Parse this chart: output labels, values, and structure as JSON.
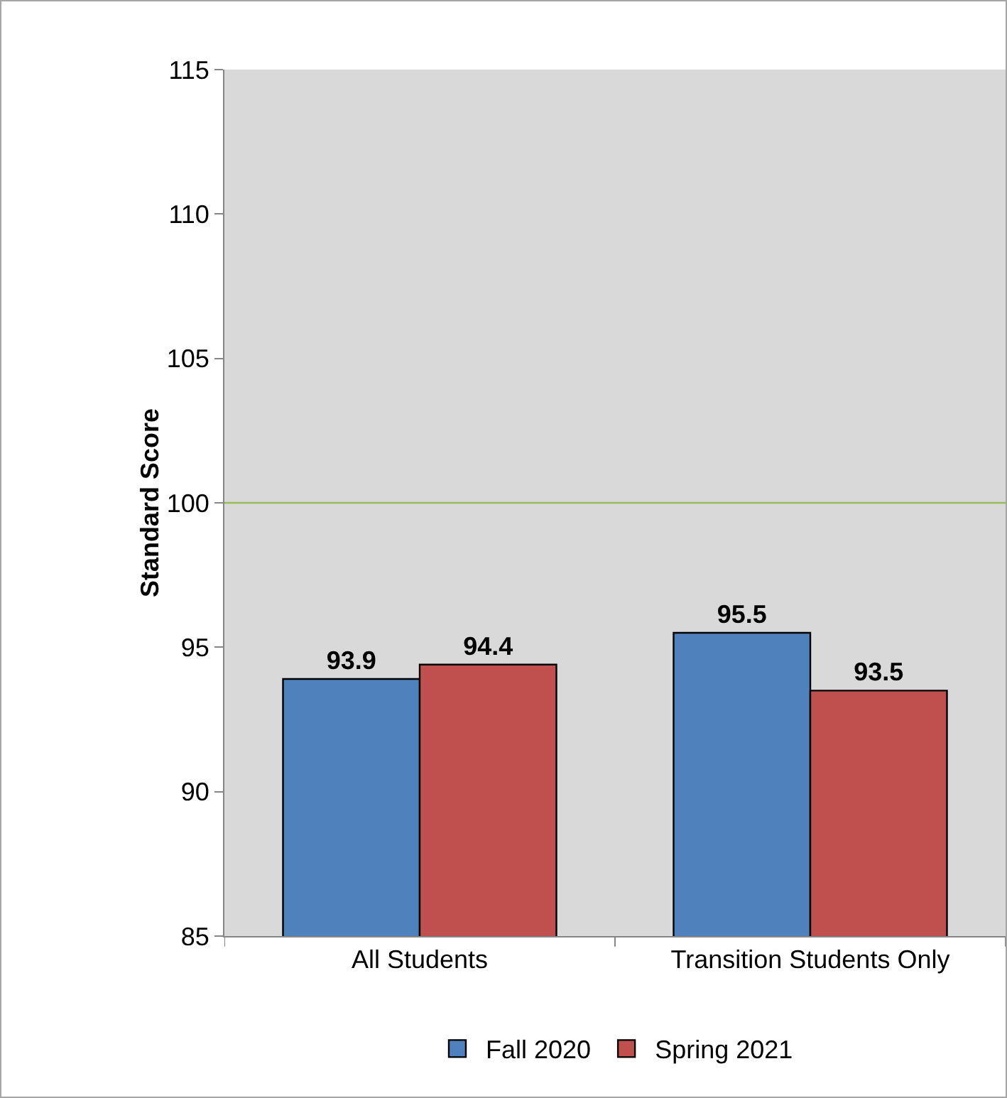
{
  "chart_data": {
    "type": "bar",
    "ylabel": "Standard Score",
    "categories": [
      "All Students",
      "Transition Students Only"
    ],
    "series": [
      {
        "name": "Fall 2020",
        "color": "#4f81bd",
        "values": [
          93.9,
          95.5
        ]
      },
      {
        "name": "Spring 2021",
        "color": "#c0504d",
        "values": [
          94.4,
          93.5
        ]
      }
    ],
    "ylim": [
      85,
      115
    ],
    "yticks": [
      85,
      90,
      95,
      100,
      105,
      110,
      115
    ],
    "grid": false,
    "legend": "bottom",
    "data_labels": true,
    "ref_lines": [
      {
        "axis": "y",
        "value": 100,
        "color": "#9bbb59"
      }
    ]
  }
}
